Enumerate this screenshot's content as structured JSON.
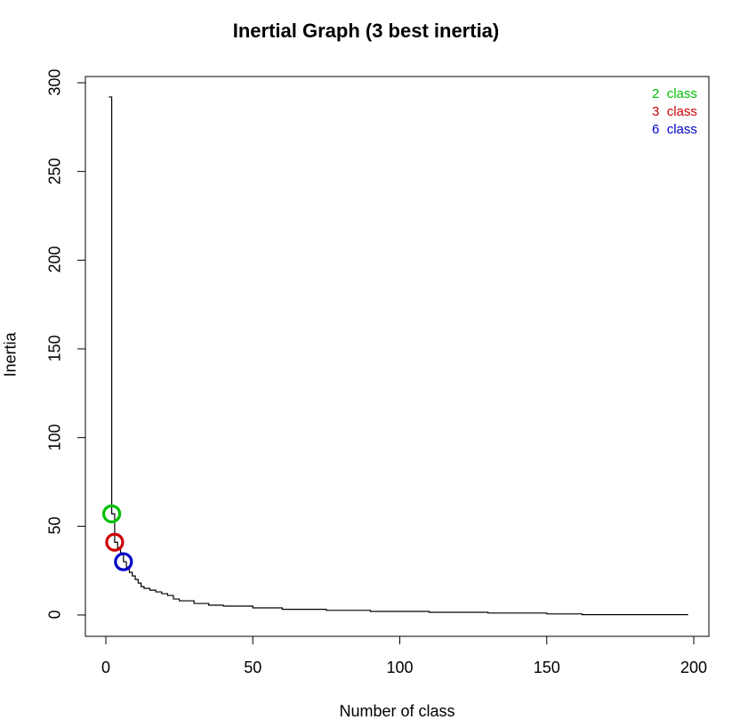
{
  "chart_data": {
    "type": "line",
    "title": "Inertial Graph (3 best inertia)",
    "xlabel": "Number of class",
    "ylabel": "Inertia",
    "xlim": [
      -6,
      206
    ],
    "ylim": [
      -12,
      304
    ],
    "x_ticks": [
      "0",
      "50",
      "100",
      "150",
      "200"
    ],
    "x_tick_values": [
      0,
      50,
      100,
      150,
      200
    ],
    "y_ticks": [
      "0",
      "50",
      "100",
      "150",
      "200",
      "250",
      "300"
    ],
    "y_tick_values": [
      0,
      50,
      100,
      150,
      200,
      250,
      300
    ],
    "series": [
      {
        "step": "s",
        "x": [
          1,
          2,
          3,
          4,
          5,
          6,
          7,
          8,
          9,
          10,
          11,
          12,
          13,
          15,
          17,
          19,
          21,
          23,
          25,
          30,
          35,
          40,
          50,
          60,
          75,
          90,
          110,
          130,
          150,
          162,
          198
        ],
        "y": [
          292,
          57,
          41,
          38,
          35,
          30,
          27,
          24,
          22,
          20,
          18,
          16,
          15,
          14,
          13,
          12,
          11,
          9,
          8,
          6.5,
          5.5,
          5,
          4,
          3.2,
          2.6,
          2.0,
          1.5,
          1.1,
          0.6,
          0.2,
          0.1
        ]
      }
    ],
    "highlights": [
      {
        "x": 2,
        "y": 57,
        "color": "#00c000"
      },
      {
        "x": 3,
        "y": 41,
        "color": "#cc0000"
      },
      {
        "x": 6,
        "y": 30,
        "color": "#0000c8"
      }
    ],
    "legend": {
      "placement": "top-right",
      "entries": [
        {
          "number": "2",
          "label": "class",
          "color": "#00c000"
        },
        {
          "number": "3",
          "label": "class",
          "color": "#cc0000"
        },
        {
          "number": "6",
          "label": "class",
          "color": "#0000c8"
        }
      ]
    }
  }
}
